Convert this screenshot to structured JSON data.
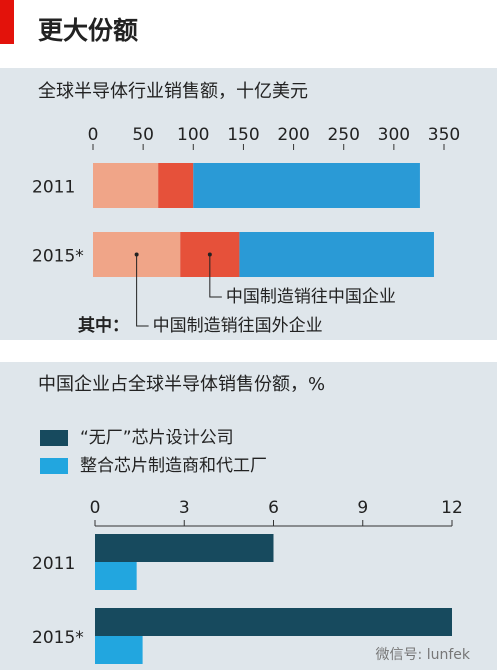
{
  "title": "更大份额",
  "watermark": "微信号: lunfek",
  "chart_data": [
    {
      "type": "bar",
      "orientation": "horizontal",
      "stacked": true,
      "title": "全球半导体行业销售额，十亿美元",
      "categories": [
        "2011",
        "2015*"
      ],
      "annotation": "其中：",
      "series": [
        {
          "name": "中国制造销往国外企业",
          "color": "#f0a588",
          "values": [
            65,
            87
          ]
        },
        {
          "name": "中国制造销往中国企业",
          "color": "#e6513a",
          "values": [
            35,
            59
          ]
        },
        {
          "color": "#2a9ad6",
          "values": [
            226,
            194
          ]
        }
      ],
      "xlim": [
        0,
        350
      ],
      "xticks": [
        0,
        50,
        100,
        150,
        200,
        250,
        300,
        350
      ]
    },
    {
      "type": "bar",
      "orientation": "horizontal",
      "stacked": false,
      "title": "中国企业占全球半导体销售份额，%",
      "categories": [
        "2011",
        "2015*"
      ],
      "series": [
        {
          "name": "“无厂”芯片设计公司",
          "color": "#174a5e",
          "values": [
            6.0,
            12.0
          ]
        },
        {
          "name": "整合芯片制造商和代工厂",
          "color": "#22a6df",
          "values": [
            1.4,
            1.6
          ]
        }
      ],
      "xlim": [
        0,
        12
      ],
      "xticks": [
        0,
        3,
        6,
        9,
        12
      ]
    }
  ]
}
